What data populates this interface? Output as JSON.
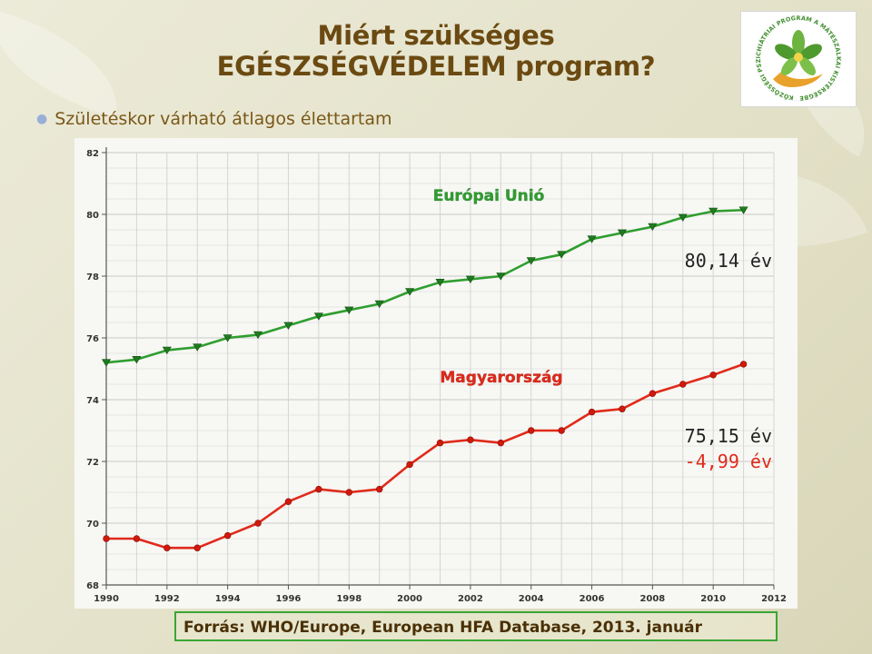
{
  "slide": {
    "title_line1": "Miért szükséges",
    "title_line2": "EGÉSZSÉGVÉDELEM program?",
    "bullet": "Születéskor várható átlagos élettartam",
    "source": "Forrás: WHO/Europe, European HFA Database, 2013. január"
  },
  "logo": {
    "ring_text": "KÖZÖSSÉGI PSZICHIÁTRIAI PROGRAM A MÁTÉSZALKAI KISTÉRSÉGBEN",
    "icon": "green-leaf-flower-in-hand-icon"
  },
  "chart_data": {
    "type": "line",
    "title": "",
    "xlabel": "",
    "ylabel": "",
    "xlim": [
      1990,
      2012
    ],
    "ylim": [
      68,
      82
    ],
    "x_ticks": [
      1990,
      1992,
      1994,
      1996,
      1998,
      2000,
      2002,
      2004,
      2006,
      2008,
      2010,
      2012
    ],
    "y_ticks": [
      68,
      70,
      72,
      74,
      76,
      78,
      80,
      82
    ],
    "grid": true,
    "x": [
      1990,
      1991,
      1992,
      1993,
      1994,
      1995,
      1996,
      1997,
      1998,
      1999,
      2000,
      2001,
      2002,
      2003,
      2004,
      2005,
      2006,
      2007,
      2008,
      2009,
      2010,
      2011
    ],
    "series": [
      {
        "name": "Európai Unió",
        "color": "#2f9e2f",
        "marker": "triangle-down",
        "values": [
          75.2,
          75.3,
          75.6,
          75.7,
          76.0,
          76.1,
          76.4,
          76.7,
          76.9,
          77.1,
          77.5,
          77.8,
          77.9,
          78.0,
          78.5,
          78.7,
          79.2,
          79.4,
          79.6,
          79.9,
          80.1,
          80.14
        ]
      },
      {
        "name": "Magyarország",
        "color": "#e02a1a",
        "marker": "circle",
        "values": [
          69.5,
          69.5,
          69.2,
          69.2,
          69.6,
          70.0,
          70.7,
          71.1,
          71.0,
          71.1,
          71.9,
          72.6,
          72.7,
          72.6,
          73.0,
          73.0,
          73.6,
          73.7,
          74.2,
          74.5,
          74.8,
          75.15
        ]
      }
    ],
    "annotations": {
      "eu_value": "80,14 év",
      "hu_value": "75,15 év",
      "gap": "-4,99 év"
    }
  }
}
